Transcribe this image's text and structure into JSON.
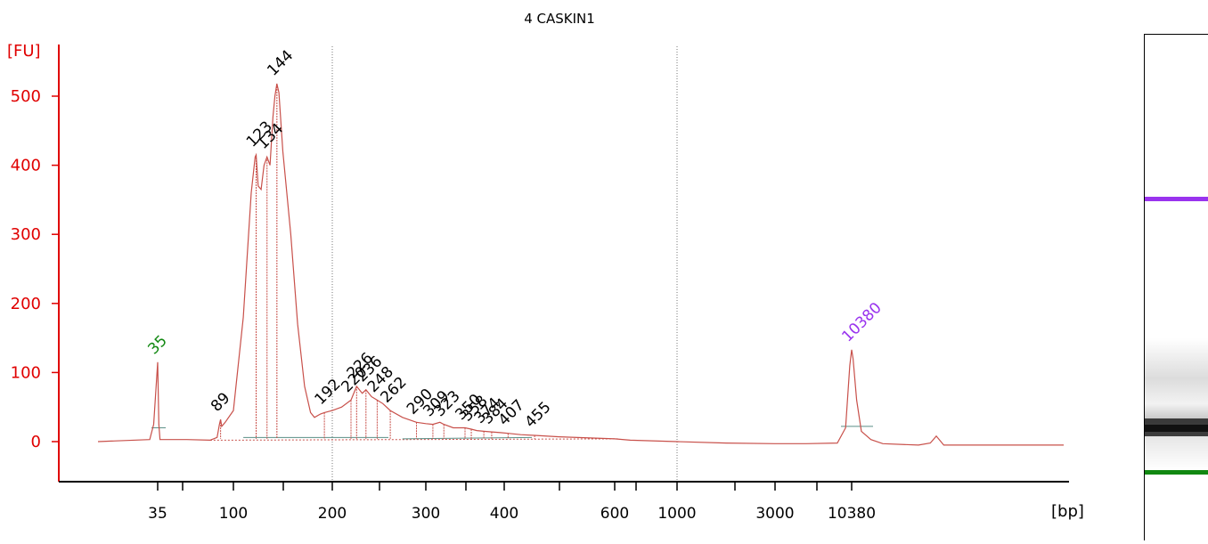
{
  "chart_data": {
    "type": "line",
    "title": "4 CASKIN1",
    "ylabel": "[FU]",
    "xlabel": "[bp]",
    "ylim": [
      -60,
      560
    ],
    "y_ticks": [
      0,
      100,
      200,
      300,
      400,
      500
    ],
    "x_tick_labels": [
      "35",
      "100",
      "200",
      "300",
      "400",
      "600",
      "1000",
      "3000",
      "10380"
    ],
    "x_scale": "piecewise (sample-run time axis)",
    "vertical_grid_at_bp": [
      200,
      1000
    ],
    "colors": {
      "axis": "#e00000",
      "trace": "#c8504a",
      "lower_marker": "#118811",
      "upper_marker": "#9933ee",
      "baseline": "#5a8f86",
      "text": "#000000"
    },
    "series": [
      {
        "points": [
          [
            20,
            0
          ],
          [
            33,
            3
          ],
          [
            34,
            25
          ],
          [
            35,
            115
          ],
          [
            36,
            25
          ],
          [
            37,
            3
          ],
          [
            60,
            3
          ],
          [
            80,
            2
          ],
          [
            86,
            6
          ],
          [
            88,
            25
          ],
          [
            89,
            32
          ],
          [
            90,
            22
          ],
          [
            93,
            28
          ],
          [
            100,
            45
          ],
          [
            110,
            180
          ],
          [
            118,
            360
          ],
          [
            122,
            412
          ],
          [
            123,
            415
          ],
          [
            125,
            370
          ],
          [
            128,
            365
          ],
          [
            131,
            400
          ],
          [
            134,
            412
          ],
          [
            137,
            400
          ],
          [
            140,
            470
          ],
          [
            142,
            500
          ],
          [
            144,
            518
          ],
          [
            146,
            505
          ],
          [
            150,
            420
          ],
          [
            158,
            300
          ],
          [
            165,
            170
          ],
          [
            172,
            80
          ],
          [
            178,
            42
          ],
          [
            182,
            35
          ],
          [
            188,
            40
          ],
          [
            192,
            42
          ],
          [
            200,
            45
          ],
          [
            210,
            50
          ],
          [
            220,
            60
          ],
          [
            226,
            80
          ],
          [
            232,
            70
          ],
          [
            236,
            75
          ],
          [
            242,
            65
          ],
          [
            248,
            60
          ],
          [
            254,
            55
          ],
          [
            262,
            45
          ],
          [
            275,
            35
          ],
          [
            290,
            28
          ],
          [
            300,
            26
          ],
          [
            309,
            25
          ],
          [
            318,
            28
          ],
          [
            323,
            25
          ],
          [
            335,
            20
          ],
          [
            350,
            20
          ],
          [
            358,
            18
          ],
          [
            365,
            16
          ],
          [
            374,
            15
          ],
          [
            384,
            14
          ],
          [
            395,
            13
          ],
          [
            407,
            12
          ],
          [
            430,
            10
          ],
          [
            455,
            9
          ],
          [
            500,
            7
          ],
          [
            600,
            4
          ],
          [
            700,
            2
          ],
          [
            1000,
            0
          ],
          [
            2000,
            -2
          ],
          [
            3000,
            -3
          ],
          [
            6000,
            -3
          ],
          [
            9000,
            -2
          ],
          [
            9800,
            20
          ],
          [
            10200,
            110
          ],
          [
            10380,
            133
          ],
          [
            10500,
            120
          ],
          [
            10800,
            60
          ],
          [
            11200,
            15
          ],
          [
            12000,
            3
          ],
          [
            13000,
            -3
          ],
          [
            16000,
            -5
          ],
          [
            17000,
            -2
          ],
          [
            17500,
            8
          ],
          [
            18000,
            -5
          ],
          [
            26000,
            -5
          ]
        ]
      }
    ],
    "peak_labels": [
      {
        "bp": 35,
        "fu": 115,
        "label": "35",
        "kind": "lower_marker"
      },
      {
        "bp": 89,
        "fu": 32,
        "label": "89"
      },
      {
        "bp": 123,
        "fu": 415,
        "label": "123"
      },
      {
        "bp": 134,
        "fu": 412,
        "label": "134"
      },
      {
        "bp": 144,
        "fu": 518,
        "label": "144"
      },
      {
        "bp": 192,
        "fu": 42,
        "label": "192"
      },
      {
        "bp": 220,
        "fu": 60,
        "label": "220"
      },
      {
        "bp": 226,
        "fu": 80,
        "label": "226"
      },
      {
        "bp": 236,
        "fu": 75,
        "label": "236"
      },
      {
        "bp": 248,
        "fu": 60,
        "label": "248"
      },
      {
        "bp": 262,
        "fu": 45,
        "label": "262"
      },
      {
        "bp": 290,
        "fu": 28,
        "label": "290"
      },
      {
        "bp": 309,
        "fu": 25,
        "label": "309"
      },
      {
        "bp": 323,
        "fu": 25,
        "label": "323"
      },
      {
        "bp": 350,
        "fu": 20,
        "label": "350"
      },
      {
        "bp": 358,
        "fu": 18,
        "label": "358"
      },
      {
        "bp": 374,
        "fu": 15,
        "label": "374"
      },
      {
        "bp": 384,
        "fu": 14,
        "label": "384"
      },
      {
        "bp": 407,
        "fu": 12,
        "label": "407"
      },
      {
        "bp": 455,
        "fu": 9,
        "label": "455"
      },
      {
        "bp": 10380,
        "fu": 133,
        "label": "10380",
        "kind": "upper_marker"
      }
    ]
  },
  "gel": {
    "upper_marker_color": "#9933ee",
    "lower_marker_color": "#118811"
  }
}
